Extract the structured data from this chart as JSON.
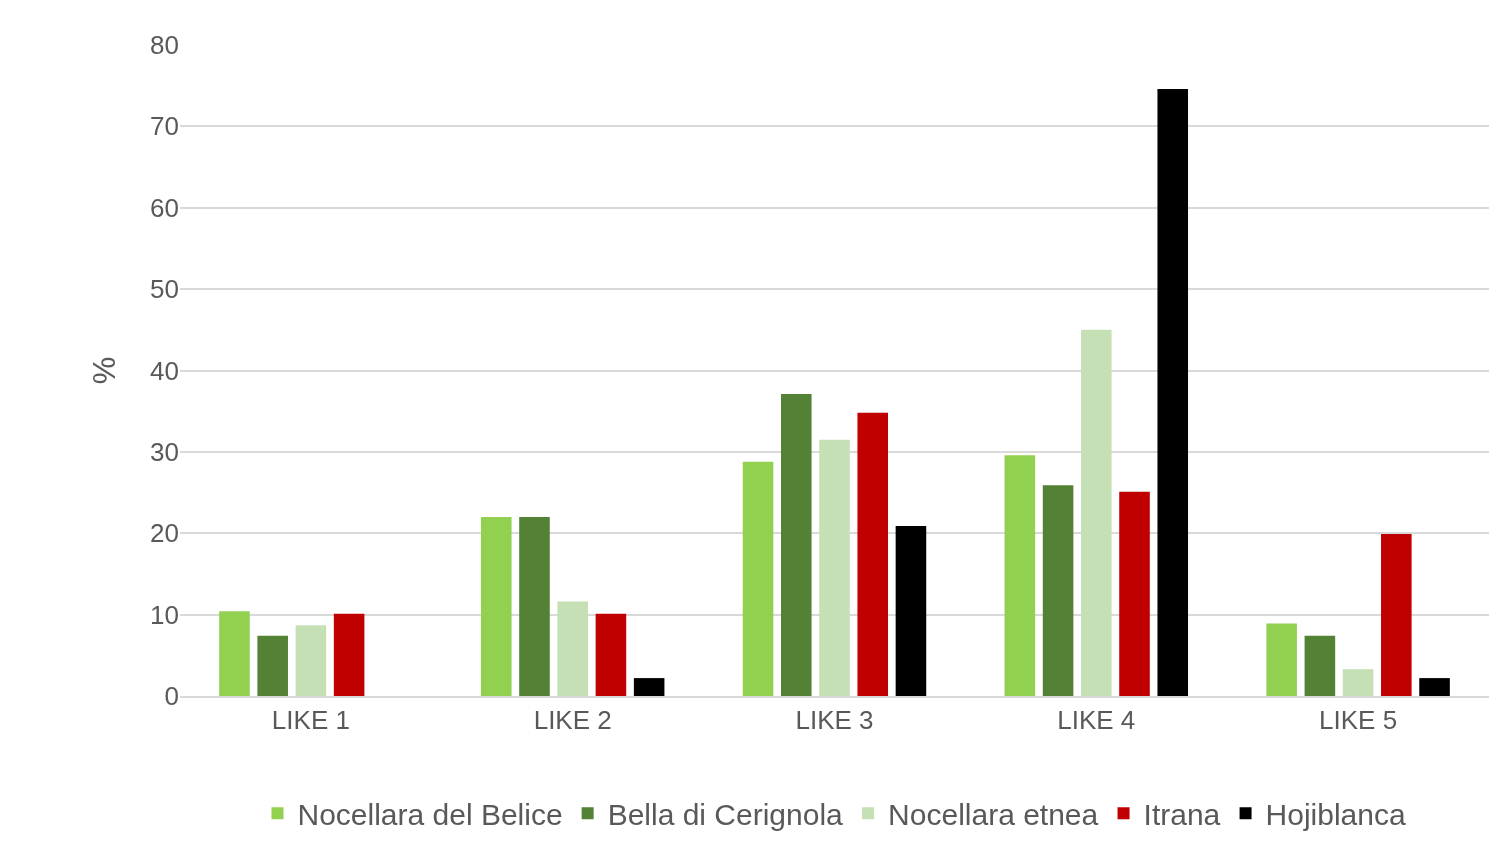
{
  "chart_data": {
    "type": "bar",
    "ylabel": "%",
    "categories": [
      "LIKE 1",
      "LIKE 2",
      "LIKE 3",
      "LIKE 4",
      "LIKE 5"
    ],
    "series": [
      {
        "name": "Nocellara del Belice",
        "color": "#92d050",
        "values": [
          10.4,
          22.0,
          28.8,
          29.6,
          8.9
        ]
      },
      {
        "name": "Bella di Cerignola",
        "color": "#538135",
        "values": [
          7.4,
          22.0,
          37.1,
          25.9,
          7.4
        ]
      },
      {
        "name": "Nocellara etnea",
        "color": "#c5e0b4",
        "values": [
          8.7,
          11.6,
          31.5,
          45.0,
          3.3
        ]
      },
      {
        "name": "Itrana",
        "color": "#c00000",
        "values": [
          10.1,
          10.1,
          34.8,
          25.1,
          19.9
        ]
      },
      {
        "name": "Hojiblanca",
        "color": "#000000",
        "values": [
          0,
          2.2,
          20.9,
          74.6,
          2.2
        ]
      }
    ],
    "ylim": [
      0,
      80
    ],
    "yticks": [
      0,
      10,
      20,
      30,
      40,
      50,
      60,
      70,
      80
    ],
    "grid": "y",
    "legend": "bottom"
  }
}
